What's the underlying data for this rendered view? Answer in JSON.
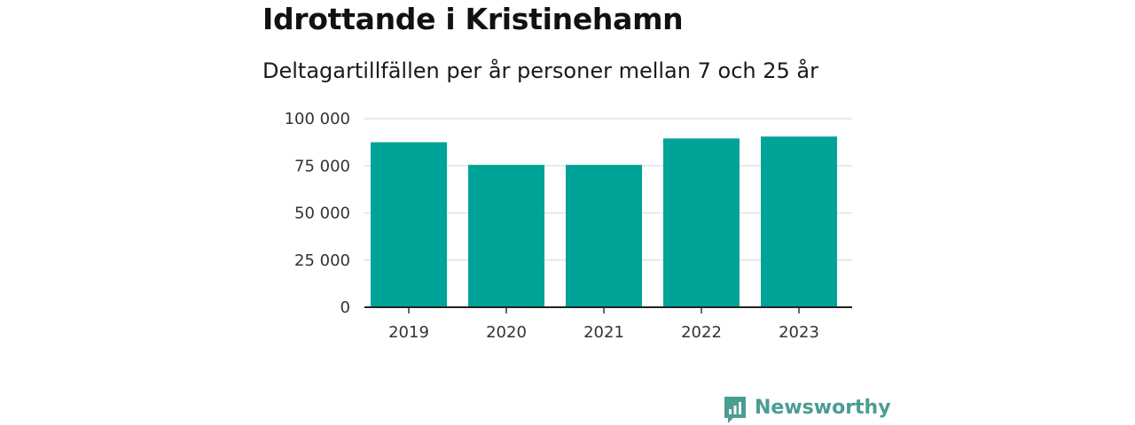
{
  "title": "Idrottande i Kristinehamn",
  "subtitle": "Deltagartillfällen per år personer mellan 7 och 25 år",
  "brand": {
    "name": "Newsworthy",
    "color": "#4a9d92"
  },
  "chart_data": {
    "type": "bar",
    "categories": [
      "2019",
      "2020",
      "2021",
      "2022",
      "2023"
    ],
    "values": [
      87500,
      75500,
      75500,
      89500,
      90500
    ],
    "ylim": [
      0,
      100000
    ],
    "yticks": [
      0,
      25000,
      50000,
      75000,
      100000
    ],
    "ytick_labels": [
      "0",
      "25 000",
      "50 000",
      "75 000",
      "100 000"
    ],
    "bar_color": "#00a398",
    "grid": true,
    "xlabel": "",
    "ylabel": ""
  }
}
